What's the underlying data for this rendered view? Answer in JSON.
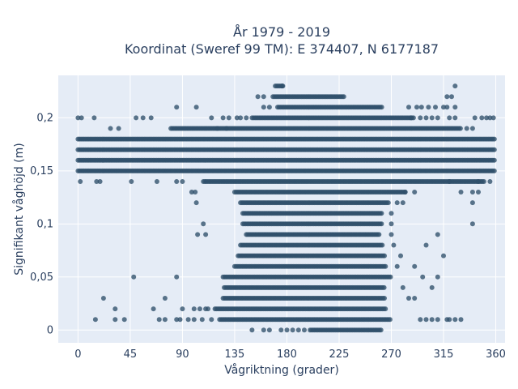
{
  "chart_data": {
    "type": "scatter",
    "title_lines": [
      "År 1979 - 2019",
      "Koordinat (Sweref 99 TM): E 374407, N 6177187"
    ],
    "xlabel": "Vågriktning (grader)",
    "ylabel": "Signifikant våghöjd (m)",
    "xlim": [
      -17,
      368
    ],
    "ylim": [
      -0.012,
      0.24
    ],
    "x_ticks": [
      0,
      45,
      90,
      135,
      180,
      225,
      270,
      315,
      360
    ],
    "x_tick_labels": [
      "0",
      "45",
      "90",
      "135",
      "180",
      "225",
      "270",
      "315",
      "360"
    ],
    "y_ticks": [
      0,
      0.05,
      0.1,
      0.15,
      0.2
    ],
    "y_tick_labels": [
      "0",
      "0,05",
      "0,1",
      "0,15",
      "0,2"
    ],
    "grid": true,
    "marker_color": "#2f4f6a",
    "plot_background": "#e5ecf6",
    "bands": [
      {
        "y": 0.23,
        "ranges": [
          [
            170,
            177
          ]
        ]
      },
      {
        "y": 0.22,
        "ranges": [
          [
            168,
            230
          ]
        ]
      },
      {
        "y": 0.21,
        "ranges": [
          [
            172,
            262
          ]
        ]
      },
      {
        "y": 0.2,
        "ranges": [
          [
            150,
            290
          ]
        ]
      },
      {
        "y": 0.19,
        "ranges": [
          [
            80,
            330
          ]
        ]
      },
      {
        "y": 0.18,
        "ranges": [
          [
            0,
            360
          ]
        ]
      },
      {
        "y": 0.17,
        "ranges": [
          [
            0,
            360
          ]
        ]
      },
      {
        "y": 0.16,
        "ranges": [
          [
            0,
            360
          ]
        ]
      },
      {
        "y": 0.15,
        "ranges": [
          [
            0,
            360
          ]
        ]
      },
      {
        "y": 0.14,
        "ranges": [
          [
            108,
            350
          ]
        ]
      },
      {
        "y": 0.13,
        "ranges": [
          [
            135,
            282
          ]
        ]
      },
      {
        "y": 0.12,
        "ranges": [
          [
            140,
            268
          ]
        ]
      },
      {
        "y": 0.11,
        "ranges": [
          [
            142,
            262
          ]
        ]
      },
      {
        "y": 0.1,
        "ranges": [
          [
            142,
            262
          ]
        ]
      },
      {
        "y": 0.09,
        "ranges": [
          [
            145,
            260
          ]
        ]
      },
      {
        "y": 0.08,
        "ranges": [
          [
            140,
            263
          ]
        ]
      },
      {
        "y": 0.07,
        "ranges": [
          [
            138,
            265
          ]
        ]
      },
      {
        "y": 0.06,
        "ranges": [
          [
            135,
            265
          ]
        ]
      },
      {
        "y": 0.05,
        "ranges": [
          [
            125,
            270
          ]
        ]
      },
      {
        "y": 0.04,
        "ranges": [
          [
            126,
            265
          ]
        ]
      },
      {
        "y": 0.03,
        "ranges": [
          [
            125,
            265
          ]
        ]
      },
      {
        "y": 0.02,
        "ranges": [
          [
            118,
            265
          ]
        ]
      },
      {
        "y": 0.01,
        "ranges": [
          [
            122,
            270
          ]
        ]
      },
      {
        "y": 0.0,
        "ranges": [
          [
            200,
            262
          ]
        ]
      }
    ],
    "points": [
      [
        0,
        0.2
      ],
      [
        3,
        0.2
      ],
      [
        14,
        0.2
      ],
      [
        2,
        0.14
      ],
      [
        16,
        0.14
      ],
      [
        19,
        0.14
      ],
      [
        28,
        0.19
      ],
      [
        35,
        0.19
      ],
      [
        46,
        0.14
      ],
      [
        50,
        0.2
      ],
      [
        56,
        0.2
      ],
      [
        63,
        0.2
      ],
      [
        68,
        0.14
      ],
      [
        85,
        0.14
      ],
      [
        90,
        0.14
      ],
      [
        98,
        0.13
      ],
      [
        101,
        0.13
      ],
      [
        85,
        0.21
      ],
      [
        102,
        0.21
      ],
      [
        102,
        0.12
      ],
      [
        103,
        0.09
      ],
      [
        108,
        0.1
      ],
      [
        110,
        0.09
      ],
      [
        48,
        0.05
      ],
      [
        85,
        0.05
      ],
      [
        22,
        0.03
      ],
      [
        32,
        0.02
      ],
      [
        65,
        0.02
      ],
      [
        75,
        0.03
      ],
      [
        90,
        0.02
      ],
      [
        100,
        0.02
      ],
      [
        105,
        0.02
      ],
      [
        110,
        0.02
      ],
      [
        15,
        0.01
      ],
      [
        32,
        0.01
      ],
      [
        40,
        0.01
      ],
      [
        70,
        0.01
      ],
      [
        75,
        0.01
      ],
      [
        85,
        0.01
      ],
      [
        88,
        0.01
      ],
      [
        95,
        0.01
      ],
      [
        100,
        0.01
      ],
      [
        107,
        0.01
      ],
      [
        115,
        0.01
      ],
      [
        112,
        0.02
      ],
      [
        150,
        0
      ],
      [
        160,
        0
      ],
      [
        165,
        0
      ],
      [
        175,
        0
      ],
      [
        180,
        0
      ],
      [
        185,
        0
      ],
      [
        190,
        0
      ],
      [
        195,
        0
      ],
      [
        310,
        0.09
      ],
      [
        315,
        0.07
      ],
      [
        300,
        0.08
      ],
      [
        297,
        0.05
      ],
      [
        290,
        0.06
      ],
      [
        305,
        0.04
      ],
      [
        310,
        0.05
      ],
      [
        280,
        0.04
      ],
      [
        285,
        0.03
      ],
      [
        290,
        0.03
      ],
      [
        275,
        0.06
      ],
      [
        278,
        0.07
      ],
      [
        272,
        0.08
      ],
      [
        270,
        0.09
      ],
      [
        270,
        0.1
      ],
      [
        270,
        0.11
      ],
      [
        275,
        0.12
      ],
      [
        280,
        0.12
      ],
      [
        282,
        0.13
      ],
      [
        290,
        0.13
      ],
      [
        295,
        0.01
      ],
      [
        300,
        0.01
      ],
      [
        305,
        0.01
      ],
      [
        310,
        0.01
      ],
      [
        320,
        0.01
      ],
      [
        330,
        0.01
      ],
      [
        325,
        0.01
      ],
      [
        318,
        0.01
      ],
      [
        340,
        0.13
      ],
      [
        345,
        0.13
      ],
      [
        330,
        0.13
      ],
      [
        320,
        0.14
      ],
      [
        340,
        0.12
      ],
      [
        340,
        0.1
      ],
      [
        345,
        0.14
      ],
      [
        355,
        0.14
      ],
      [
        335,
        0.19
      ],
      [
        340,
        0.19
      ],
      [
        342,
        0.2
      ],
      [
        348,
        0.2
      ],
      [
        352,
        0.2
      ],
      [
        355,
        0.2
      ],
      [
        358,
        0.2
      ],
      [
        320,
        0.2
      ],
      [
        325,
        0.2
      ],
      [
        318,
        0.21
      ],
      [
        325,
        0.21
      ],
      [
        325,
        0.23
      ],
      [
        318,
        0.22
      ],
      [
        322,
        0.22
      ],
      [
        315,
        0.21
      ],
      [
        308,
        0.21
      ],
      [
        302,
        0.21
      ],
      [
        296,
        0.21
      ],
      [
        292,
        0.21
      ],
      [
        285,
        0.21
      ],
      [
        287,
        0.2
      ],
      [
        295,
        0.2
      ],
      [
        300,
        0.2
      ],
      [
        305,
        0.2
      ],
      [
        310,
        0.2
      ],
      [
        130,
        0.2
      ],
      [
        137,
        0.2
      ],
      [
        140,
        0.2
      ],
      [
        155,
        0.22
      ],
      [
        160,
        0.22
      ],
      [
        120,
        0.19
      ],
      [
        128,
        0.19
      ],
      [
        115,
        0.2
      ],
      [
        125,
        0.2
      ],
      [
        145,
        0.2
      ],
      [
        160,
        0.21
      ],
      [
        165,
        0.21
      ],
      [
        176,
        0.23
      ]
    ]
  }
}
